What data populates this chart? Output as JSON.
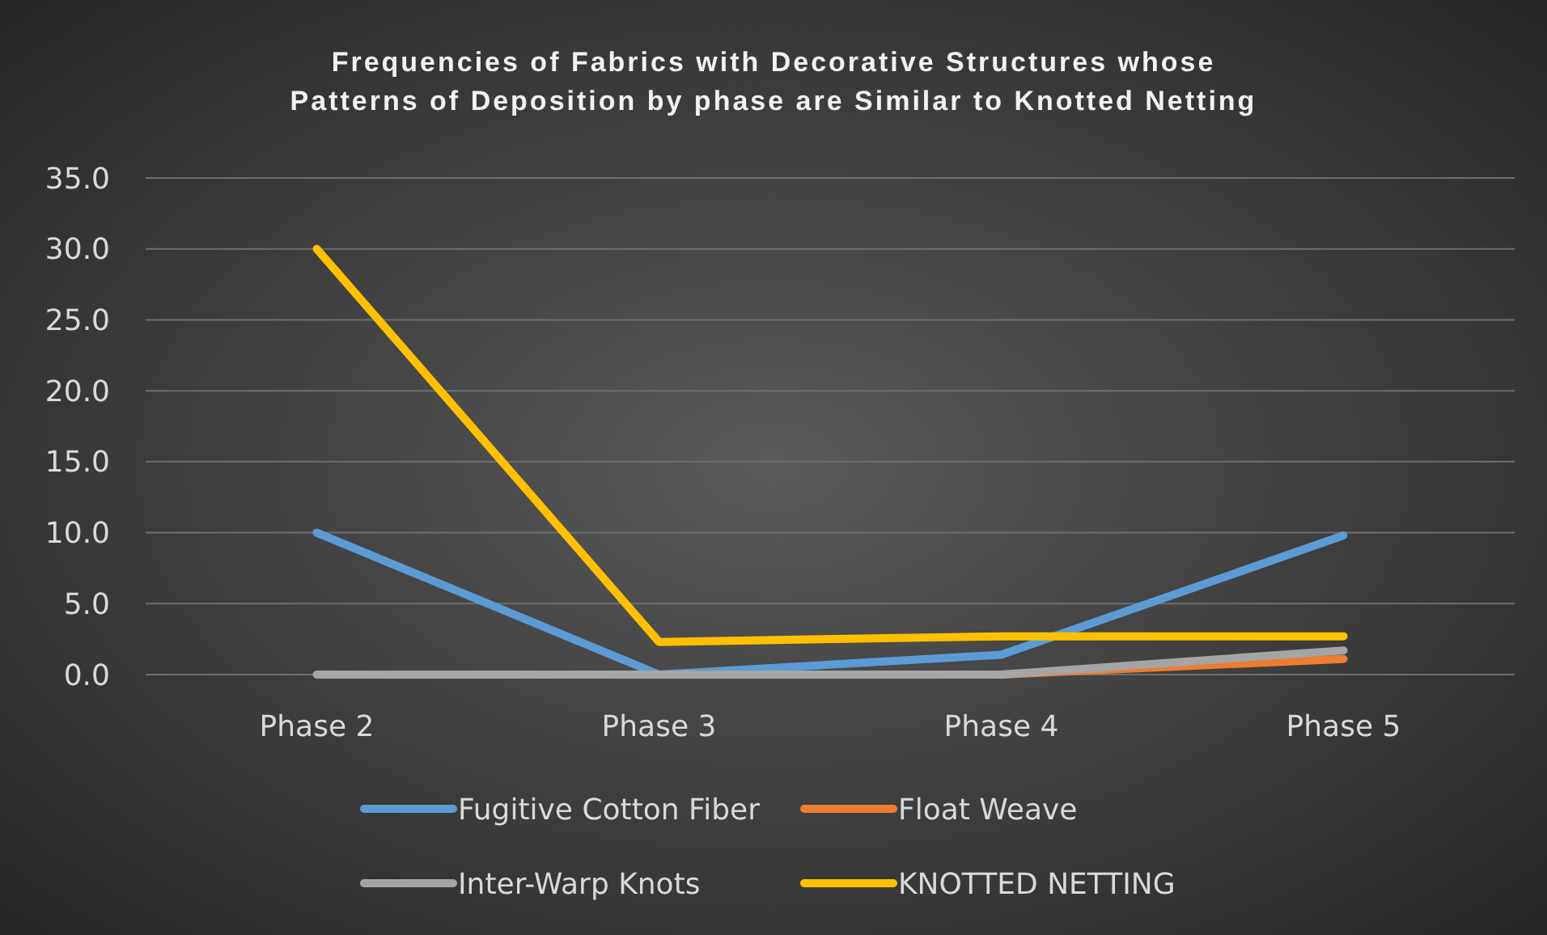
{
  "chart_data": {
    "type": "line",
    "title": "Frequencies of Fabrics with Decorative Structures  whose\nPatterns of Deposition by phase are Similar to Knotted Netting",
    "categories": [
      "Phase 2",
      "Phase 3",
      "Phase 4",
      "Phase 5"
    ],
    "series": [
      {
        "name": "Fugitive Cotton Fiber",
        "color": "#5b9bd5",
        "values": [
          10,
          0,
          1.4,
          9.8
        ]
      },
      {
        "name": "Float Weave",
        "color": "#ed7d31",
        "values": [
          null,
          null,
          0,
          1.1
        ]
      },
      {
        "name": "Inter-Warp Knots",
        "color": "#a5a5a5",
        "values": [
          0,
          0,
          0,
          1.7
        ]
      },
      {
        "name": "KNOTTED NETTING",
        "color": "#ffc000",
        "values": [
          30,
          2.3,
          2.7,
          2.7
        ]
      }
    ],
    "ylim": [
      0,
      35
    ],
    "yticks": [
      {
        "value": 0,
        "label": "0.0"
      },
      {
        "value": 5,
        "label": "5.0"
      },
      {
        "value": 10,
        "label": "10.0"
      },
      {
        "value": 15,
        "label": "15.0"
      },
      {
        "value": 20,
        "label": "20.0"
      },
      {
        "value": 25,
        "label": "25.0"
      },
      {
        "value": 30,
        "label": "30.0"
      },
      {
        "value": 35,
        "label": "35.0"
      }
    ],
    "grid": "y",
    "legend": "bottom",
    "marker": "none",
    "line_style": "solid"
  }
}
